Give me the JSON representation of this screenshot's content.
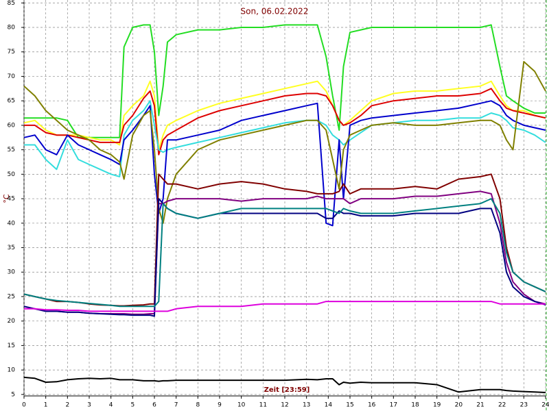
{
  "chart_data": {
    "type": "line",
    "title": "Son, 06.02.2022",
    "x_label": "Zeit [23:59]",
    "y_label": "°C",
    "title_color": "#800000",
    "xlim": [
      0,
      24
    ],
    "ylim": [
      4.7,
      85.6
    ],
    "xticks": [
      0,
      1,
      2,
      3,
      4,
      5,
      6,
      7,
      8,
      9,
      10,
      11,
      12,
      13,
      14,
      15,
      16,
      17,
      18,
      19,
      20,
      21,
      22,
      23,
      24
    ],
    "yticks": [
      5,
      10,
      15,
      20,
      25,
      30,
      35,
      40,
      45,
      50,
      55,
      60,
      65,
      70,
      75,
      80,
      85
    ],
    "grid": true,
    "x": [
      0,
      0.5,
      1,
      1.5,
      2,
      2.5,
      3,
      3.5,
      4,
      4.4,
      4.6,
      5,
      5.5,
      5.8,
      6,
      6.2,
      6.4,
      6.6,
      7,
      8,
      9,
      10,
      11,
      12,
      13,
      13.5,
      13.9,
      14.2,
      14.5,
      14.7,
      15,
      15.5,
      16,
      17,
      18,
      19,
      20,
      21,
      21.5,
      21.9,
      22.2,
      22.5,
      23,
      23.5,
      24
    ],
    "series": [
      {
        "color": "#22dd22",
        "values": [
          61.5,
          61.5,
          61.5,
          61.5,
          61,
          57.5,
          57.5,
          57.5,
          57.5,
          57.5,
          76,
          80,
          80.5,
          80.5,
          75,
          62,
          68,
          77,
          78.5,
          79.5,
          79.5,
          80,
          80,
          80.5,
          80.5,
          80.5,
          74,
          66,
          59,
          72,
          79,
          79.5,
          80,
          80,
          80,
          80,
          80,
          80,
          80.5,
          72,
          66,
          65,
          63.5,
          62.5,
          62.5
        ]
      },
      {
        "color": "#ffff22",
        "values": [
          60.5,
          61,
          59,
          58,
          58,
          58,
          57.5,
          57,
          57,
          56,
          62,
          64,
          66,
          69,
          66,
          55,
          58,
          60,
          61,
          63,
          64.5,
          65.5,
          66.5,
          67.5,
          68.5,
          69,
          67,
          64,
          61,
          60,
          61,
          63,
          65,
          66.5,
          67,
          67,
          67.5,
          68,
          69,
          66,
          64,
          63,
          63,
          62,
          61.5
        ]
      },
      {
        "color": "#dd0000",
        "values": [
          60,
          60,
          58.5,
          58,
          58,
          57.5,
          57,
          56.5,
          56.5,
          56.5,
          60,
          62,
          65.5,
          67,
          64,
          54,
          57,
          58,
          59,
          61.5,
          63,
          64,
          65,
          66,
          66.5,
          66.5,
          66,
          64,
          61,
          60,
          60.5,
          62,
          64,
          65,
          65.5,
          66,
          66,
          66.5,
          67.5,
          65,
          63.5,
          63,
          62.5,
          62,
          61.5
        ]
      },
      {
        "color": "#33dddd",
        "values": [
          56,
          56,
          53,
          51,
          57,
          53,
          52,
          51,
          50,
          49.5,
          58,
          61,
          63,
          65,
          60,
          55,
          54.5,
          55,
          55.5,
          56.5,
          57.5,
          58.5,
          59.5,
          60.5,
          61,
          61,
          60,
          58,
          57,
          56,
          57,
          58.5,
          60,
          60.5,
          61,
          61,
          61.5,
          61.5,
          62.5,
          62,
          61,
          59.5,
          59,
          58,
          56.5
        ]
      },
      {
        "color": "#0000cc",
        "values": [
          57.5,
          58,
          55,
          54,
          58,
          56,
          55,
          54,
          53,
          52,
          57,
          59,
          62,
          64,
          50,
          42,
          45,
          57,
          57,
          58,
          59,
          61,
          62,
          63,
          64,
          64.5,
          40,
          39.5,
          57,
          45,
          60,
          61,
          61.5,
          62,
          62.5,
          63,
          63.5,
          64.5,
          65,
          64,
          62,
          61,
          60,
          59.5,
          59
        ]
      },
      {
        "color": "#808000",
        "values": [
          68,
          66,
          63,
          61,
          59,
          58,
          57,
          55,
          54,
          52.5,
          49,
          58,
          62,
          63,
          55,
          43,
          40,
          45,
          50,
          55,
          57,
          58,
          59,
          60,
          61,
          61,
          59,
          53,
          47,
          55,
          58,
          59,
          60,
          60.5,
          60,
          60,
          60.5,
          61,
          61,
          60,
          57,
          55,
          73,
          71,
          67
        ]
      },
      {
        "color": "#800000",
        "values": [
          25.5,
          25,
          24.5,
          24,
          24,
          23.8,
          23.5,
          23.3,
          23.2,
          23.1,
          23.1,
          23.2,
          23.3,
          23.5,
          23.5,
          50,
          49,
          48,
          48,
          47,
          48,
          48.5,
          48,
          47,
          46.5,
          46,
          46,
          46,
          46.5,
          48,
          46,
          47,
          47,
          47,
          47.5,
          47,
          49,
          49.5,
          50,
          45,
          35,
          30,
          28,
          27,
          26
        ]
      },
      {
        "color": "#800080",
        "values": [
          23,
          22.5,
          22,
          22,
          21.8,
          21.8,
          21.6,
          21.5,
          21.5,
          21.5,
          21.5,
          21.4,
          21.4,
          21.5,
          21.5,
          44,
          44,
          44.5,
          45,
          45,
          45,
          44.5,
          45,
          45,
          45,
          45.5,
          45,
          45,
          45,
          45,
          44,
          45,
          45,
          45,
          45.5,
          45.5,
          46,
          46.5,
          46,
          40,
          32,
          28,
          25.5,
          24,
          23.5
        ]
      },
      {
        "color": "#000080",
        "values": [
          23,
          22.5,
          22,
          22,
          21.8,
          21.8,
          21.6,
          21.5,
          21.4,
          21.3,
          21.3,
          21.2,
          21.2,
          21.2,
          21,
          45,
          44,
          43,
          42,
          41,
          42,
          42,
          42,
          42,
          42,
          42,
          41,
          41,
          42.5,
          42,
          42,
          41.5,
          41.5,
          41.5,
          42,
          42,
          42,
          43,
          43,
          38,
          30,
          27,
          25,
          24,
          23.3
        ]
      },
      {
        "color": "#008080",
        "values": [
          25.5,
          25,
          24.5,
          24.2,
          24,
          23.8,
          23.6,
          23.4,
          23.2,
          23,
          23,
          23,
          23,
          23,
          23,
          24,
          44,
          43,
          42,
          41,
          42,
          43,
          43,
          43,
          43,
          43,
          43,
          42.5,
          42,
          43,
          42.5,
          42,
          42,
          42,
          42.5,
          43,
          43.5,
          44,
          45,
          42,
          34,
          30,
          28,
          27,
          26
        ]
      },
      {
        "color": "#dd00dd",
        "values": [
          22.5,
          22.5,
          22.3,
          22.3,
          22.2,
          22.2,
          22,
          22,
          22,
          22,
          22,
          22,
          22,
          22,
          22,
          22,
          22,
          22,
          22.5,
          23,
          23,
          23,
          23.5,
          23.5,
          23.5,
          23.5,
          24,
          24,
          24,
          24,
          24,
          24,
          24,
          24,
          24,
          24,
          24,
          24,
          24,
          23.5,
          23.5,
          23.5,
          23.5,
          23.5,
          23.5
        ]
      },
      {
        "color": "#000000",
        "values": [
          8.5,
          8.3,
          7.5,
          7.6,
          8,
          8.2,
          8.3,
          8.2,
          8.3,
          8,
          8,
          8,
          7.8,
          7.8,
          7.8,
          7.7,
          7.8,
          7.8,
          7.9,
          7.9,
          7.9,
          7.9,
          7.9,
          7.9,
          8.1,
          8,
          8.2,
          8.2,
          7,
          7.5,
          7.3,
          7.5,
          7.4,
          7.4,
          7.4,
          7,
          5.5,
          6,
          6,
          6,
          5.8,
          5.7,
          5.6,
          5.5,
          5.4
        ]
      }
    ]
  }
}
